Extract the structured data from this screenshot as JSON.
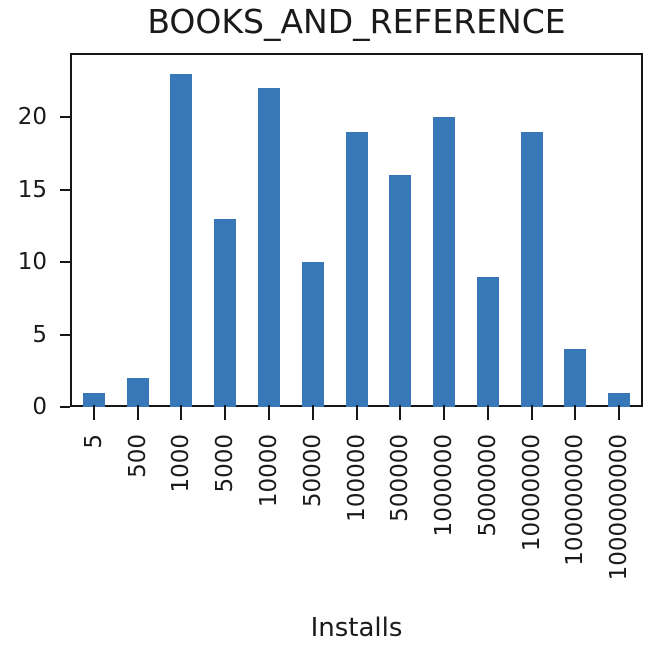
{
  "chart_data": {
    "type": "bar",
    "title": "BOOKS_AND_REFERENCE",
    "xlabel": "Installs",
    "ylabel": "",
    "categories": [
      "5",
      "500",
      "1000",
      "5000",
      "10000",
      "50000",
      "100000",
      "500000",
      "1000000",
      "5000000",
      "10000000",
      "100000000",
      "1000000000"
    ],
    "values": [
      1,
      2,
      23,
      13,
      22,
      10,
      19,
      16,
      20,
      9,
      19,
      4,
      1
    ],
    "yticks": [
      0,
      5,
      10,
      15,
      20
    ],
    "ylim": [
      0,
      24.3
    ],
    "xtick_rotation": 90,
    "grid": false,
    "legend_position": "none",
    "bar_color": "#3878b8",
    "axis_color": "#161616",
    "text_color": "#1a1a1a",
    "background_color": "#ffffff"
  }
}
